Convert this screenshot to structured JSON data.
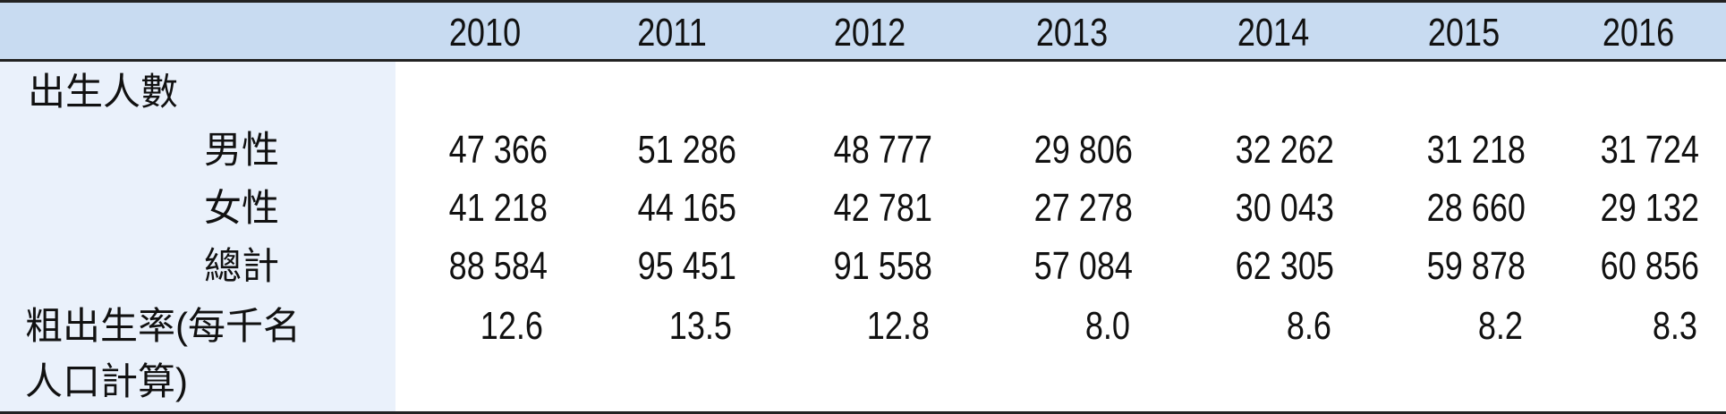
{
  "columns": [
    "2010",
    "2011",
    "2012",
    "2013",
    "2014",
    "2015",
    "2016"
  ],
  "rows": [
    {
      "label": "出生人數",
      "values": []
    },
    {
      "label": "男性",
      "values": [
        "47 366",
        "51 286",
        "48 777",
        "29 806",
        "32 262",
        "31 218",
        "31 724"
      ]
    },
    {
      "label": "女性",
      "values": [
        "41 218",
        "44 165",
        "42 781",
        "27 278",
        "30 043",
        "28 660",
        "29 132"
      ]
    },
    {
      "label": "總計",
      "values": [
        "88 584",
        "95 451",
        "91 558",
        "57 084",
        "62 305",
        "59 878",
        "60 856"
      ]
    },
    {
      "label": "粗出生率(每千名",
      "label_cont": "人口計算)",
      "values": [
        "12.6",
        "13.5",
        "12.8",
        "8.0",
        "8.6",
        "8.2",
        "8.3"
      ]
    }
  ],
  "colors": {
    "header_bg": "#c8dbf1",
    "label_col_bg": "#eaf1fb",
    "rule": "#222222"
  }
}
